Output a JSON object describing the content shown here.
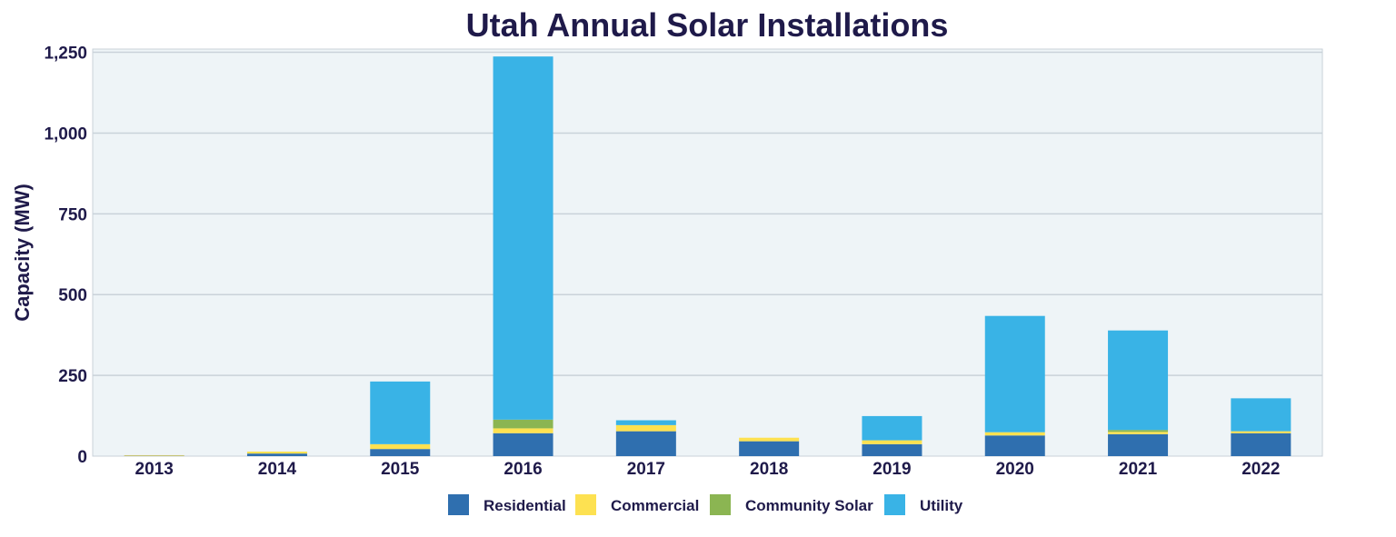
{
  "chart_data": {
    "type": "bar",
    "stacked": true,
    "title": "Utah Annual Solar Installations",
    "xlabel": "",
    "ylabel": "Capacity (MW)",
    "ylim": [
      0,
      1260
    ],
    "yticks": [
      0,
      250,
      500,
      750,
      1000,
      1250
    ],
    "ytick_labels": [
      "0",
      "250",
      "500",
      "750",
      "1,000",
      "1,250"
    ],
    "grid": true,
    "legend_position": "bottom",
    "categories": [
      "2013",
      "2014",
      "2015",
      "2016",
      "2017",
      "2018",
      "2019",
      "2020",
      "2021",
      "2022"
    ],
    "series": [
      {
        "name": "Residential",
        "color": "#2f6faf",
        "values": [
          1,
          8,
          22,
          71,
          77,
          46,
          37,
          64,
          68,
          71
        ]
      },
      {
        "name": "Commercial",
        "color": "#fde151",
        "values": [
          2,
          6,
          15,
          15,
          19,
          11,
          12,
          10,
          7,
          6
        ]
      },
      {
        "name": "Community Solar",
        "color": "#8bb552",
        "values": [
          0,
          0,
          0,
          27,
          0,
          0,
          0,
          0,
          6,
          0
        ]
      },
      {
        "name": "Utility",
        "color": "#39b3e6",
        "values": [
          0,
          0,
          194,
          1124,
          15,
          0,
          75,
          360,
          308,
          102
        ]
      }
    ]
  }
}
